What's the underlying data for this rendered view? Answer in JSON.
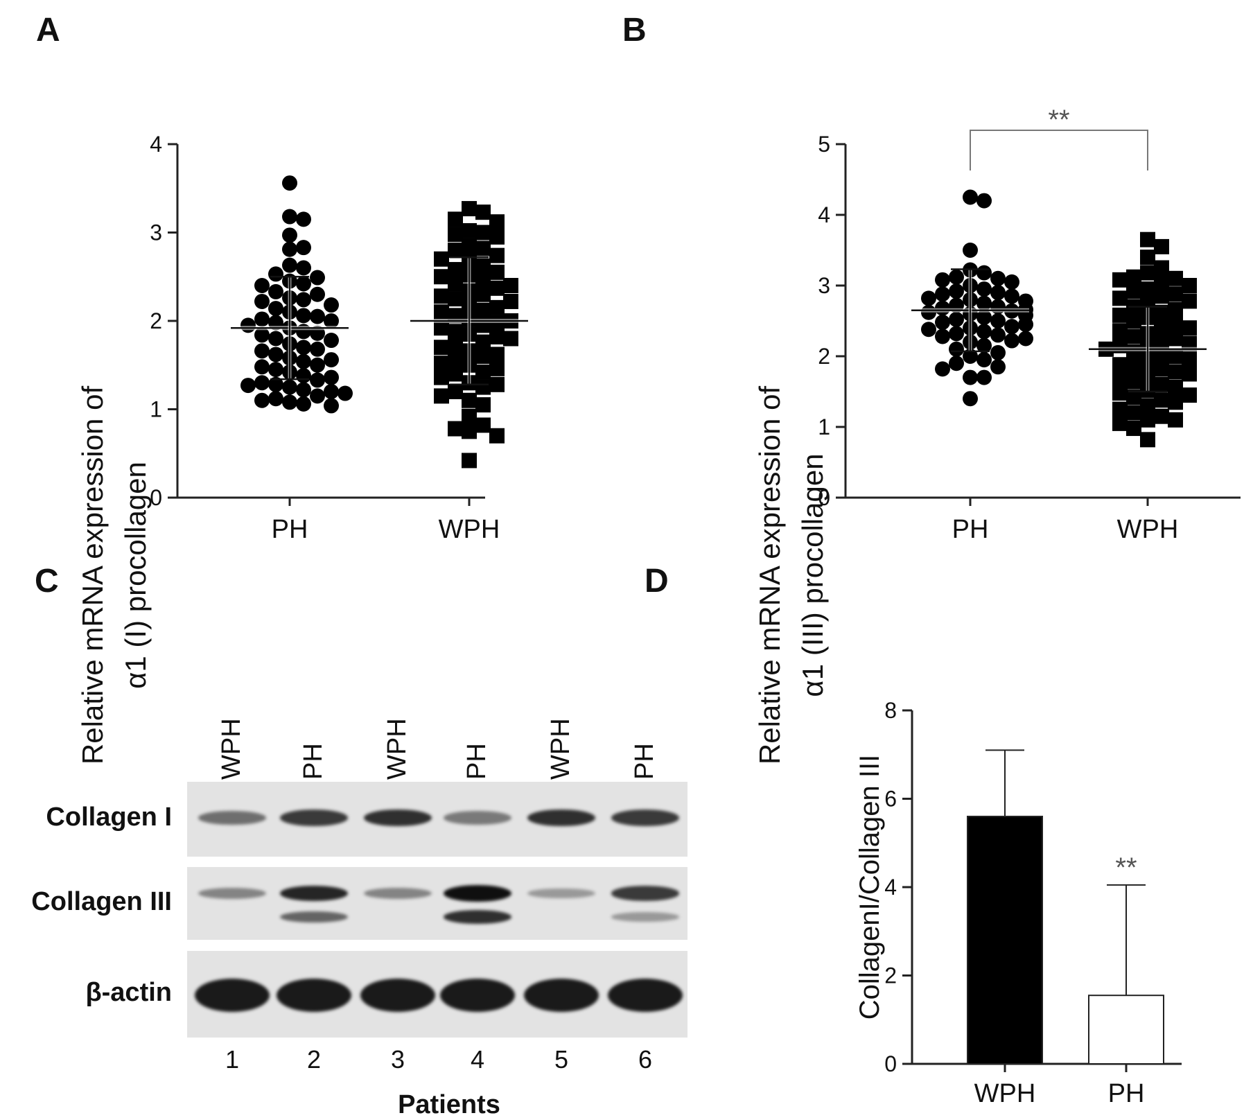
{
  "panels": {
    "a": "A",
    "b": "B",
    "c": "C",
    "d": "D"
  },
  "chart_data": [
    {
      "id": "A",
      "type": "scatter",
      "ylabel_line1": "Relative mRNA expression of",
      "ylabel_line2": "α1 (I) procollagen",
      "ylim": [
        0,
        4
      ],
      "yticks": [
        "0",
        "1",
        "2",
        "3",
        "4"
      ],
      "categories": [
        "PH",
        "WPH"
      ],
      "series": [
        {
          "name": "PH",
          "marker": "circle",
          "mean": 1.92,
          "sd": 0.58,
          "values": [
            3.56,
            3.18,
            3.15,
            2.97,
            2.81,
            2.83,
            2.63,
            2.6,
            2.53,
            2.49,
            2.45,
            2.42,
            2.4,
            2.33,
            2.3,
            2.26,
            2.24,
            2.22,
            2.18,
            2.14,
            2.1,
            2.06,
            2.05,
            2.02,
            2.0,
            1.98,
            1.95,
            1.92,
            1.88,
            1.86,
            1.84,
            1.8,
            1.78,
            1.74,
            1.7,
            1.68,
            1.66,
            1.62,
            1.58,
            1.56,
            1.54,
            1.5,
            1.48,
            1.45,
            1.42,
            1.38,
            1.36,
            1.33,
            1.3,
            1.28,
            1.27,
            1.25,
            1.22,
            1.2,
            1.18,
            1.15,
            1.12,
            1.1,
            1.08,
            1.06,
            1.04
          ]
        },
        {
          "name": "WPH",
          "marker": "square",
          "mean": 2.0,
          "sd": 0.72,
          "values": [
            3.27,
            3.23,
            3.15,
            3.12,
            3.02,
            3.0,
            2.98,
            2.95,
            2.85,
            2.82,
            2.8,
            2.74,
            2.7,
            2.68,
            2.62,
            2.58,
            2.55,
            2.52,
            2.5,
            2.46,
            2.42,
            2.4,
            2.37,
            2.34,
            2.3,
            2.28,
            2.25,
            2.22,
            2.18,
            2.15,
            2.12,
            2.1,
            2.06,
            2.02,
            2.0,
            1.98,
            1.95,
            1.92,
            1.88,
            1.85,
            1.82,
            1.8,
            1.76,
            1.72,
            1.7,
            1.66,
            1.62,
            1.6,
            1.56,
            1.52,
            1.5,
            1.46,
            1.42,
            1.4,
            1.36,
            1.3,
            1.28,
            1.25,
            1.2,
            1.15,
            1.1,
            1.05,
            0.92,
            0.82,
            0.78,
            0.75,
            0.7,
            0.42
          ]
        }
      ]
    },
    {
      "id": "B",
      "type": "scatter",
      "ylabel_line1": "Relative mRNA expression of",
      "ylabel_line2": "α1 (III) procollagen",
      "ylim": [
        0,
        5
      ],
      "yticks": [
        "0",
        "1",
        "2",
        "3",
        "4",
        "5"
      ],
      "categories": [
        "PH",
        "WPH"
      ],
      "significance": "**",
      "series": [
        {
          "name": "PH",
          "marker": "circle",
          "mean": 2.65,
          "sd": 0.58,
          "values": [
            4.25,
            4.2,
            3.5,
            3.22,
            3.18,
            3.12,
            3.1,
            3.08,
            3.05,
            3.0,
            2.95,
            2.92,
            2.9,
            2.88,
            2.85,
            2.82,
            2.8,
            2.78,
            2.75,
            2.72,
            2.7,
            2.68,
            2.66,
            2.64,
            2.62,
            2.6,
            2.58,
            2.55,
            2.52,
            2.5,
            2.48,
            2.45,
            2.42,
            2.4,
            2.38,
            2.35,
            2.32,
            2.3,
            2.28,
            2.25,
            2.22,
            2.2,
            2.15,
            2.1,
            2.05,
            2.0,
            1.95,
            1.9,
            1.85,
            1.82,
            1.7,
            1.7,
            1.4
          ]
        },
        {
          "name": "WPH",
          "marker": "square",
          "mean": 2.1,
          "sd": 0.6,
          "values": [
            3.65,
            3.55,
            3.4,
            3.25,
            3.18,
            3.12,
            3.1,
            3.08,
            3.05,
            3.0,
            2.95,
            2.92,
            2.88,
            2.85,
            2.82,
            2.78,
            2.75,
            2.7,
            2.66,
            2.62,
            2.58,
            2.55,
            2.5,
            2.46,
            2.42,
            2.4,
            2.36,
            2.32,
            2.28,
            2.25,
            2.22,
            2.18,
            2.15,
            2.12,
            2.1,
            2.06,
            2.02,
            2.0,
            1.96,
            1.92,
            1.88,
            1.85,
            1.82,
            1.78,
            1.75,
            1.72,
            1.68,
            1.64,
            1.6,
            1.56,
            1.52,
            1.48,
            1.45,
            1.42,
            1.38,
            1.35,
            1.3,
            1.25,
            1.2,
            1.15,
            1.1,
            1.1,
            1.05,
            0.98,
            0.82
          ]
        }
      ]
    },
    {
      "id": "D",
      "type": "bar",
      "ylabel": "CollagenI/Collagen III",
      "ylim": [
        0,
        8
      ],
      "yticks": [
        "0",
        "2",
        "4",
        "6",
        "8"
      ],
      "categories": [
        "WPH",
        "PH"
      ],
      "values": [
        5.6,
        1.55
      ],
      "errors": [
        1.5,
        2.5
      ],
      "fills": [
        "#000000",
        "#ffffff"
      ],
      "significance": "**"
    }
  ],
  "blot": {
    "lane_headers": [
      "WPH",
      "PH",
      "WPH",
      "PH",
      "WPH",
      "PH"
    ],
    "row_labels": [
      "Collagen I",
      "Collagen III",
      "β-actin"
    ],
    "lane_numbers": [
      "1",
      "2",
      "3",
      "4",
      "5",
      "6"
    ],
    "xlabel": "Patients",
    "collagen1_intensity": [
      0.55,
      0.8,
      0.85,
      0.5,
      0.85,
      0.8
    ],
    "collagen3_upper_intensity": [
      0.45,
      0.9,
      0.45,
      1.0,
      0.35,
      0.8
    ],
    "collagen3_lower_intensity": [
      0.0,
      0.6,
      0.0,
      0.85,
      0.0,
      0.35
    ],
    "actin_intensity": [
      1.0,
      1.0,
      1.0,
      1.0,
      1.0,
      1.0
    ]
  }
}
